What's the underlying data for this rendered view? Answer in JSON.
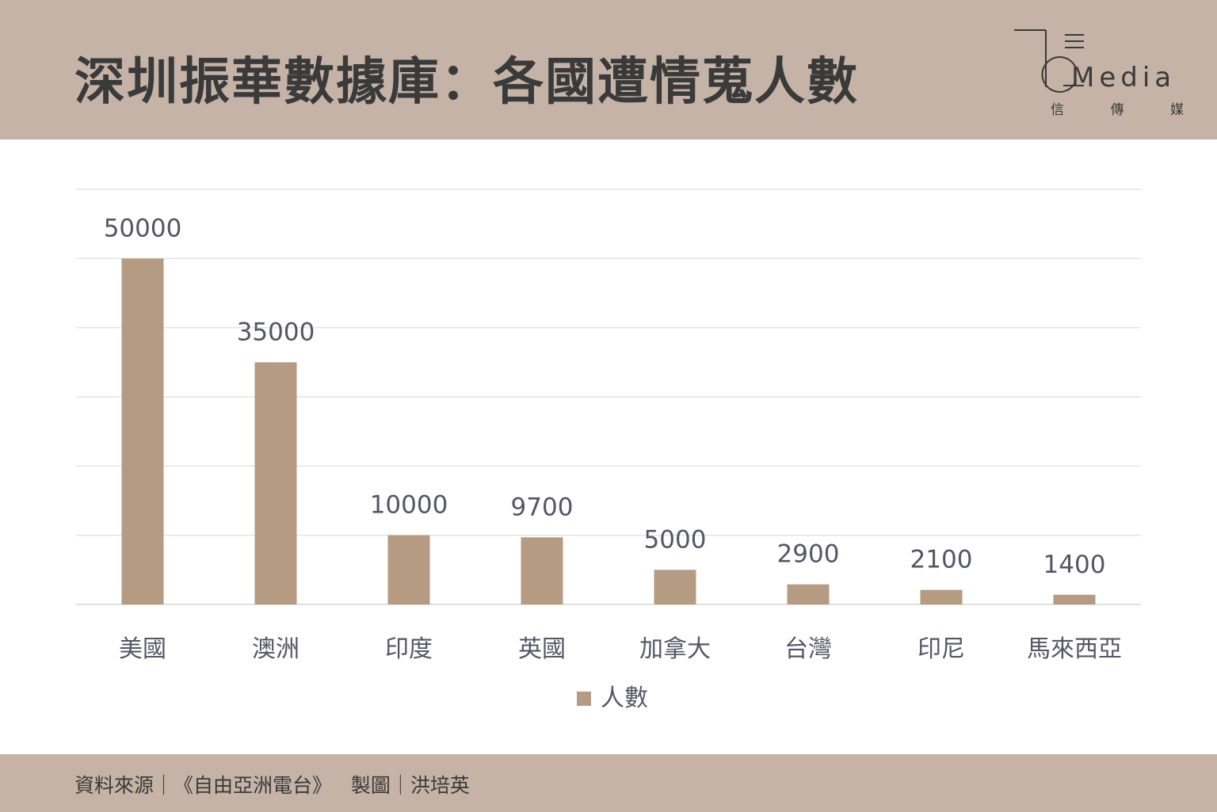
{
  "header": {
    "title": "深圳振華數據庫：各國遭情蒐人數",
    "logo": {
      "word": "Media",
      "sub": [
        "信",
        "傳",
        "媒"
      ]
    }
  },
  "chart_data": {
    "type": "bar",
    "title": "",
    "xlabel": "",
    "ylabel": "",
    "categories": [
      "美國",
      "澳洲",
      "印度",
      "英國",
      "加拿大",
      "台灣",
      "印尼",
      "馬來西亞"
    ],
    "series": [
      {
        "name": "人數",
        "values": [
          50000,
          35000,
          10000,
          9700,
          5000,
          2900,
          2100,
          1400
        ]
      }
    ],
    "data_labels": [
      "50000",
      "35000",
      "10000",
      "9700",
      "5000",
      "2900",
      "2100",
      "1400"
    ],
    "ylim": [
      0,
      60000
    ],
    "grid": true,
    "legend": "bottom-center",
    "colors": {
      "bar": "#b59b82",
      "grid": "#e4e4e4",
      "text": "#555566"
    }
  },
  "footer": {
    "text": "資料來源｜《自由亞洲電台》   製圖｜洪培英"
  }
}
